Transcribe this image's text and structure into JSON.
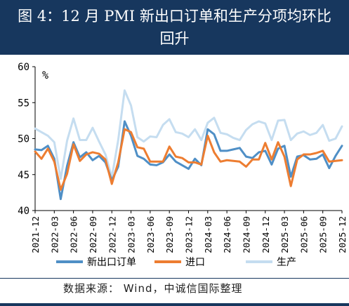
{
  "title_line1": "图 4：12 月 PMI 新出口订单和生产分项均环比",
  "title_line2": "回升",
  "source": "数据来源： Wind，中诚信国际整理",
  "chart_data": {
    "type": "line",
    "ylabel": "%",
    "ylim": [
      40,
      60
    ],
    "yticks": [
      40,
      45,
      50,
      55,
      60
    ],
    "xticklabels": [
      "2021-12",
      "2022-03",
      "2022-06",
      "2022-09",
      "2022-12",
      "2023-03",
      "2023-06",
      "2023-09",
      "2023-12",
      "2024-03",
      "2024-06",
      "2024-09",
      "2024-12",
      "2025-03",
      "2025-06",
      "2025-09",
      "2025-12"
    ],
    "x": [
      "2021-12",
      "2022-01",
      "2022-02",
      "2022-03",
      "2022-04",
      "2022-05",
      "2022-06",
      "2022-07",
      "2022-08",
      "2022-09",
      "2022-10",
      "2022-11",
      "2022-12",
      "2023-01",
      "2023-02",
      "2023-03",
      "2023-04",
      "2023-05",
      "2023-06",
      "2023-07",
      "2023-08",
      "2023-09",
      "2023-10",
      "2023-11",
      "2023-12",
      "2024-01",
      "2024-02",
      "2024-03",
      "2024-04",
      "2024-05",
      "2024-06",
      "2024-07",
      "2024-08",
      "2024-09",
      "2024-10",
      "2024-11",
      "2024-12",
      "2025-01",
      "2025-02",
      "2025-03",
      "2025-04",
      "2025-05",
      "2025-06",
      "2025-07",
      "2025-08",
      "2025-09",
      "2025-10",
      "2025-11",
      "2025-12"
    ],
    "series": [
      {
        "name": "新出口订单",
        "color": "#4f8fc6",
        "values": [
          48.5,
          48.4,
          49.0,
          47.2,
          41.6,
          46.2,
          49.5,
          47.4,
          48.1,
          47.0,
          47.6,
          46.7,
          44.2,
          46.1,
          52.4,
          50.4,
          47.6,
          47.2,
          46.4,
          46.3,
          46.7,
          47.8,
          46.8,
          46.3,
          45.8,
          47.2,
          46.3,
          51.3,
          50.6,
          48.3,
          48.3,
          48.5,
          48.7,
          47.5,
          47.3,
          48.1,
          48.3,
          46.4,
          48.6,
          49.0,
          44.7,
          47.5,
          47.7,
          47.1,
          47.2,
          47.8,
          45.9,
          47.6,
          49.0
        ]
      },
      {
        "name": "进口",
        "color": "#ed7d31",
        "values": [
          48.2,
          47.2,
          48.6,
          46.8,
          42.9,
          45.1,
          49.2,
          46.9,
          47.8,
          48.1,
          47.9,
          47.1,
          43.7,
          46.7,
          51.3,
          50.9,
          48.8,
          48.6,
          46.8,
          46.8,
          46.8,
          48.9,
          47.5,
          47.3,
          46.7,
          46.7,
          46.4,
          50.4,
          48.1,
          46.8,
          47.0,
          46.9,
          46.8,
          46.1,
          47.1,
          47.1,
          49.4,
          47.1,
          49.5,
          47.5,
          43.4,
          47.1,
          47.8,
          47.8,
          48.0,
          48.3,
          46.8,
          46.9,
          47.0
        ]
      },
      {
        "name": "生产",
        "color": "#c5ddf0",
        "values": [
          51.4,
          50.9,
          50.4,
          49.5,
          44.4,
          49.7,
          52.8,
          49.8,
          49.8,
          51.5,
          49.6,
          47.8,
          44.6,
          49.8,
          56.7,
          54.6,
          50.2,
          49.6,
          50.3,
          50.2,
          51.9,
          52.7,
          50.9,
          50.7,
          50.2,
          51.3,
          49.8,
          52.2,
          52.9,
          50.8,
          50.6,
          50.1,
          49.8,
          51.2,
          52.0,
          52.4,
          52.1,
          49.8,
          52.5,
          52.6,
          49.8,
          50.7,
          51.0,
          50.5,
          50.8,
          51.9,
          49.7,
          50.0,
          51.7
        ]
      }
    ],
    "legend": {
      "position": "bottom"
    }
  }
}
